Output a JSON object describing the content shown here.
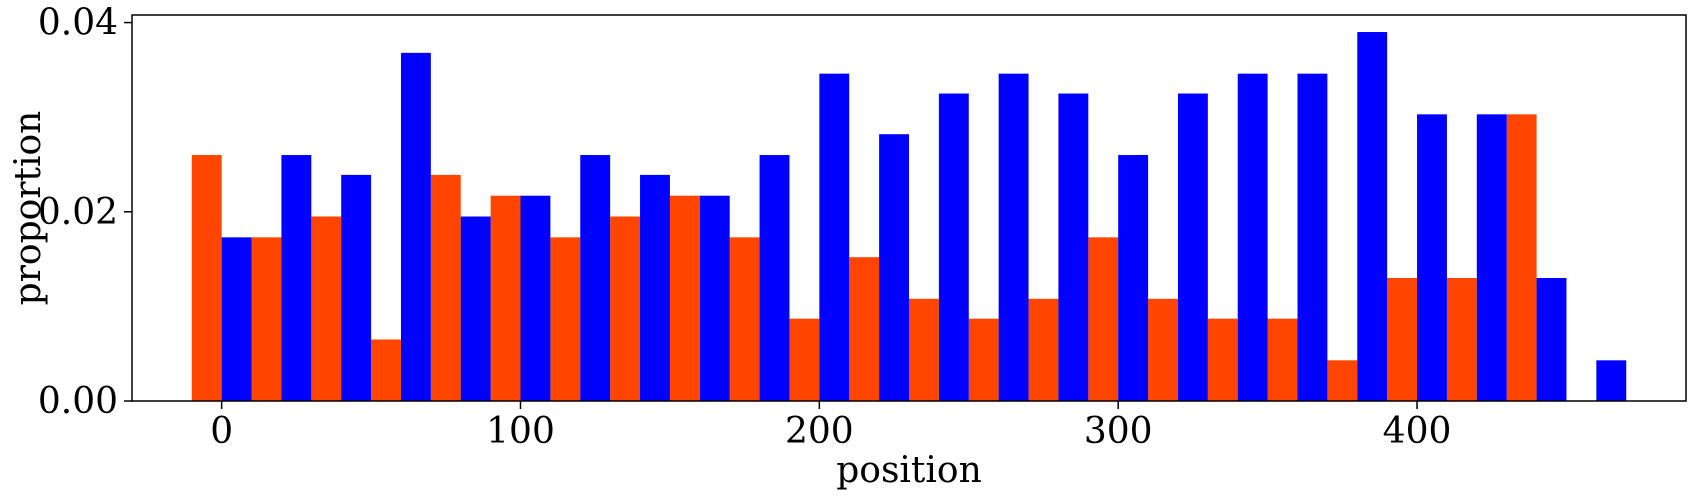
{
  "chart_data": {
    "type": "bar",
    "xlabel": "position",
    "ylabel": "proportion",
    "title": "",
    "xlim": [
      -30,
      490
    ],
    "ylim": [
      0,
      0.0408
    ],
    "xticks": [
      0,
      100,
      200,
      300,
      400
    ],
    "xtick_labels": [
      "0",
      "100",
      "200",
      "300",
      "400"
    ],
    "yticks": [
      0.0,
      0.02,
      0.04
    ],
    "ytick_labels": [
      "0.00",
      "0.02",
      "0.04"
    ],
    "bin_width": 20,
    "bin_starts": [
      -10,
      10,
      30,
      50,
      70,
      90,
      110,
      130,
      150,
      170,
      190,
      210,
      230,
      250,
      270,
      290,
      310,
      330,
      350,
      370,
      390,
      410,
      430,
      450
    ],
    "series": [
      {
        "color": "#ff4500",
        "values": [
          0.026,
          0.0173,
          0.0195,
          0.0065,
          0.0239,
          0.0217,
          0.0173,
          0.0195,
          0.0217,
          0.0173,
          0.0087,
          0.0152,
          0.0108,
          0.0087,
          0.0108,
          0.0173,
          0.0108,
          0.0087,
          0.0087,
          0.0043,
          0.013,
          0.013,
          0.0303,
          0.0
        ]
      },
      {
        "color": "#0000ff",
        "values": [
          0.0173,
          0.026,
          0.0239,
          0.0368,
          0.0195,
          0.0217,
          0.026,
          0.0239,
          0.0217,
          0.026,
          0.0346,
          0.0282,
          0.0325,
          0.0346,
          0.0325,
          0.026,
          0.0325,
          0.0346,
          0.0346,
          0.039,
          0.0303,
          0.0303,
          0.013,
          0.0043
        ]
      }
    ]
  }
}
